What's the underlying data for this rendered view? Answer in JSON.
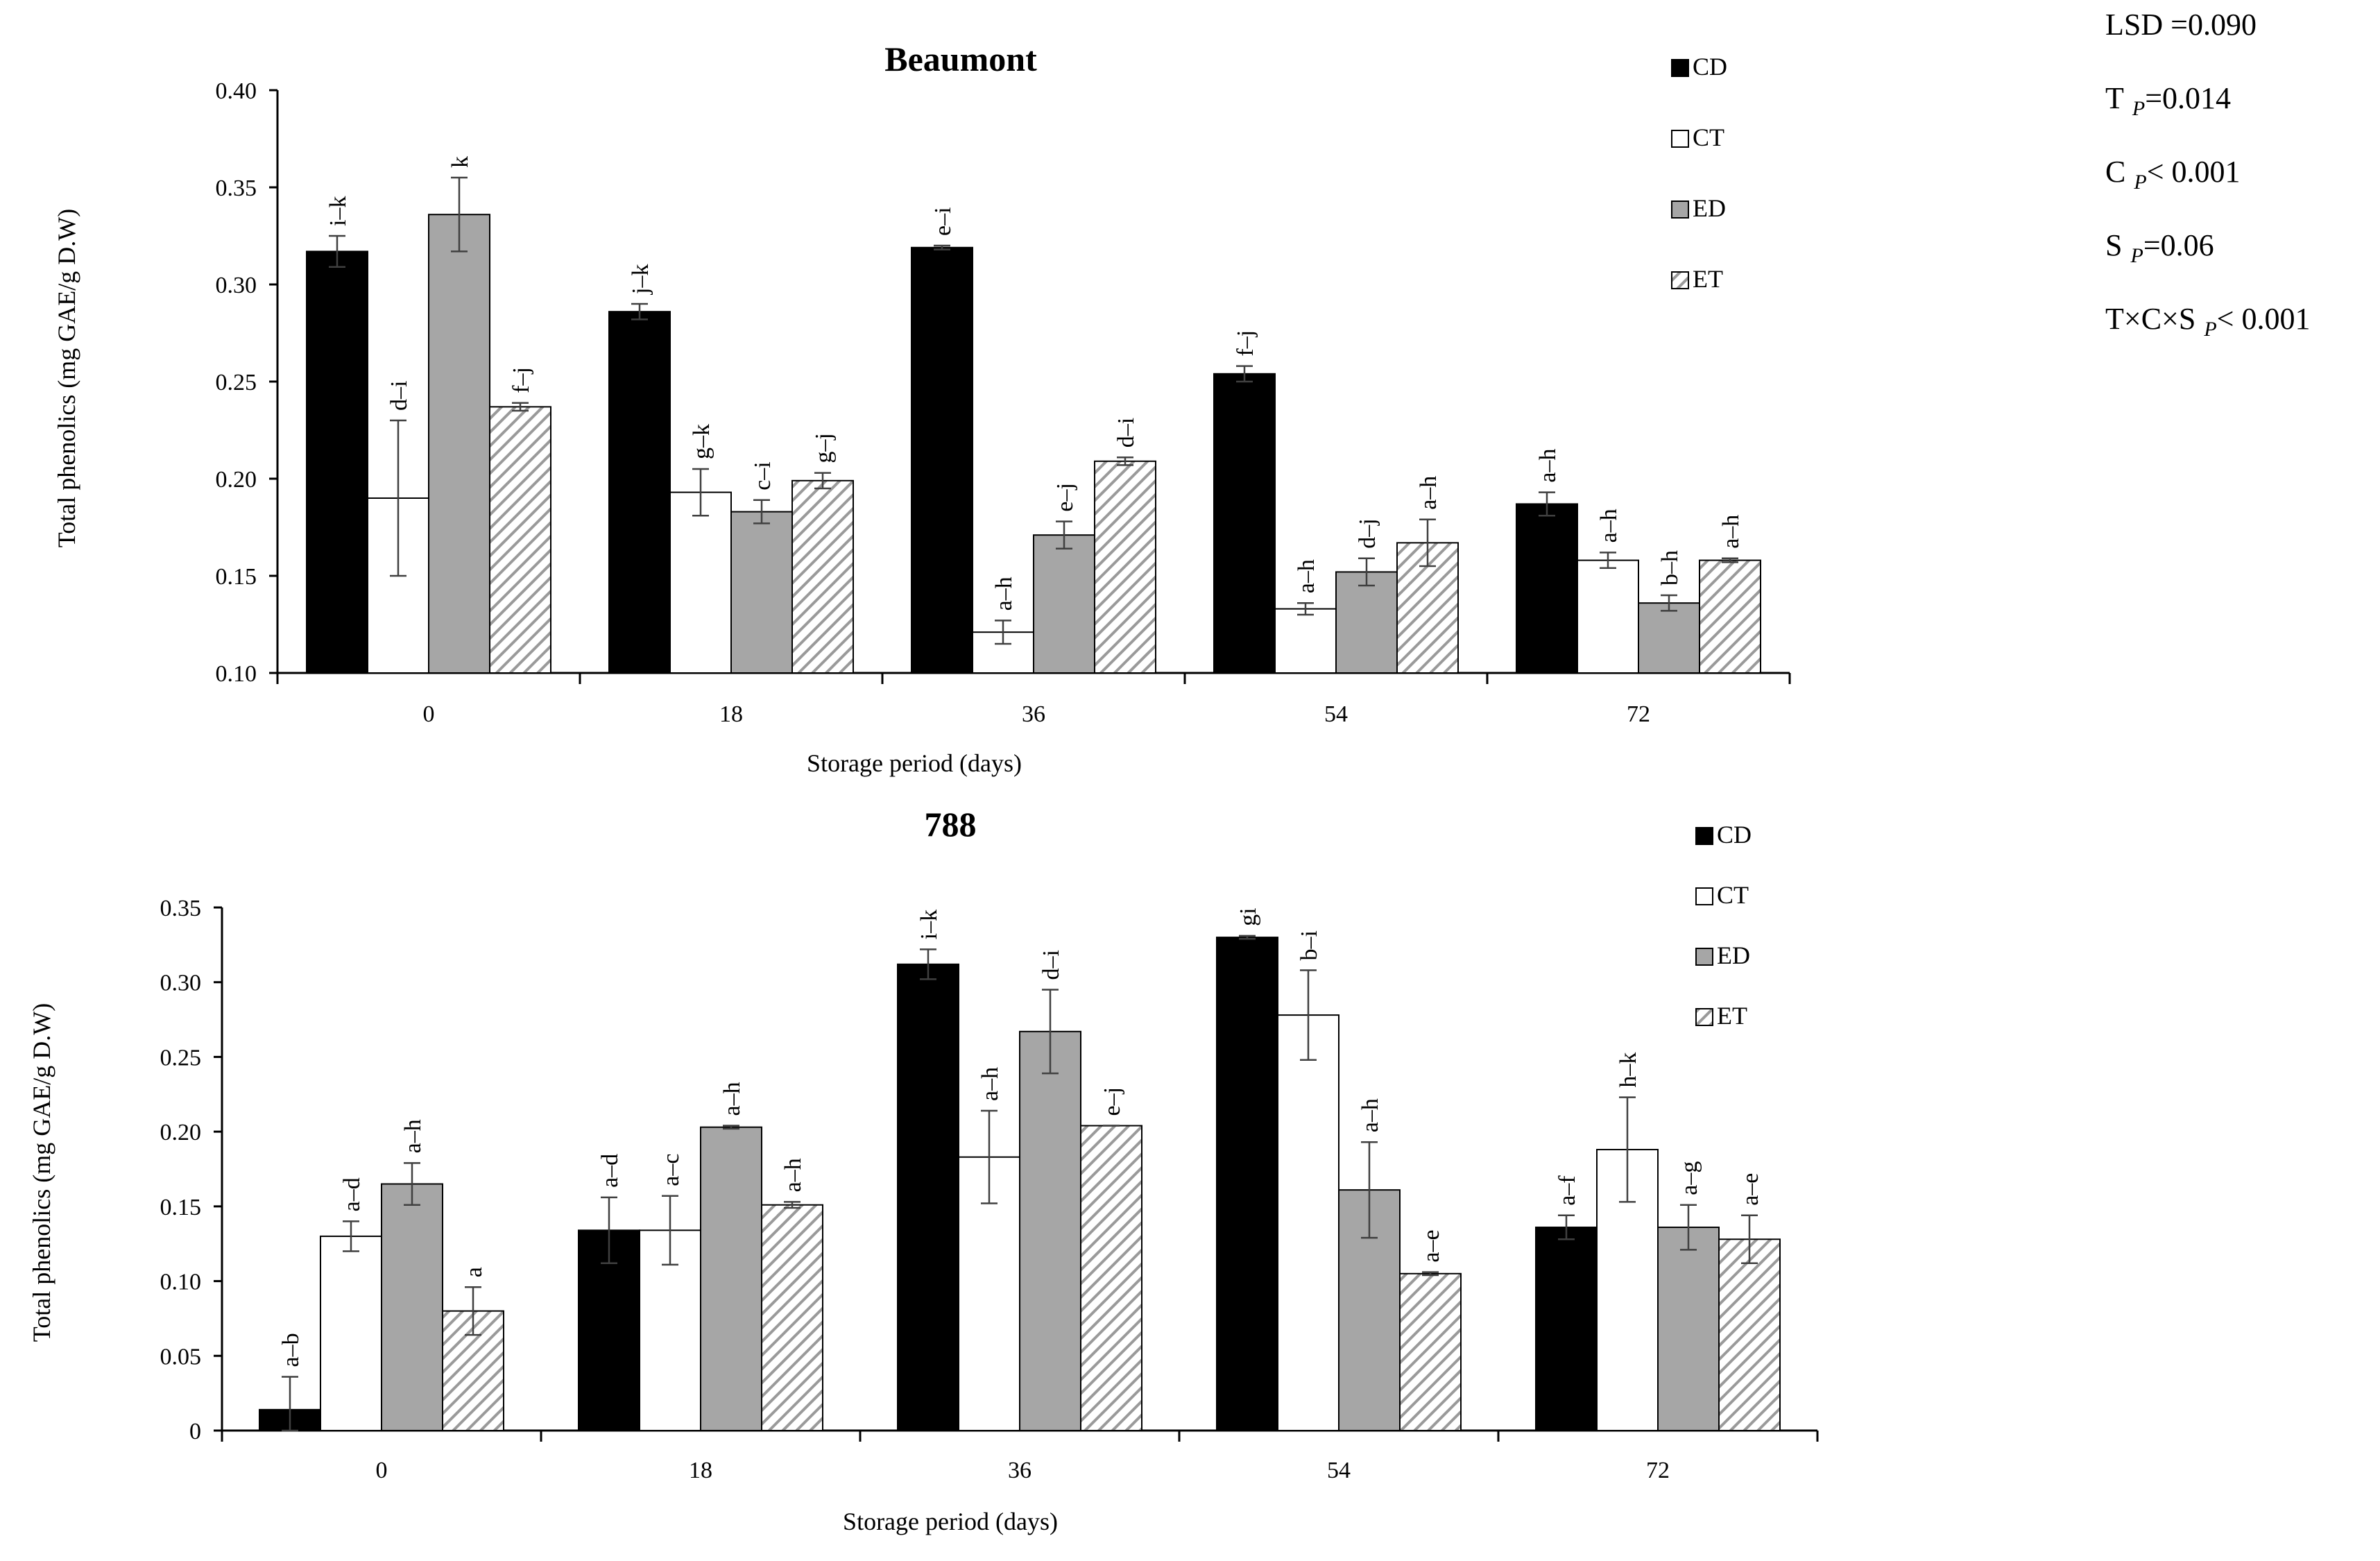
{
  "colors": {
    "CD": "#000000",
    "CT": "#ffffff",
    "ED": "#a6a6a6",
    "ET": "hatch",
    "hatch_stroke": "#999999",
    "axis": "#000000",
    "error_bar": "#404040"
  },
  "stats": [
    {
      "label": "LSD =0.090",
      "sub": "",
      "rest": ""
    },
    {
      "label": "T",
      "sub": "P",
      "rest": "=0.014"
    },
    {
      "label": "C",
      "sub": "P",
      "rest": "< 0.001"
    },
    {
      "label": "S",
      "sub": "P",
      "rest": "=0.06"
    },
    {
      "label": "T×C×S",
      "sub": "P",
      "rest": "< 0.001"
    }
  ],
  "chart_data": [
    {
      "type": "bar",
      "title": "Beaumont",
      "xlabel": "Storage period (days)",
      "ylabel": "Total phenolics (mg GAE/g D.W)",
      "ylim": [
        0.1,
        0.4
      ],
      "yticks": [
        "0.10",
        "0.15",
        "0.20",
        "0.25",
        "0.30",
        "0.35",
        "0.40"
      ],
      "categories": [
        "0",
        "18",
        "36",
        "54",
        "72"
      ],
      "legend": [
        "CD",
        "CT",
        "ED",
        "ET"
      ],
      "series": [
        {
          "name": "CD",
          "values": [
            0.317,
            0.286,
            0.319,
            0.254,
            0.187
          ],
          "errors": [
            0.008,
            0.004,
            0.001,
            0.004,
            0.006
          ],
          "letters": [
            "i–k",
            "j–k",
            "e–i",
            "f–j",
            "a–h"
          ]
        },
        {
          "name": "CT",
          "values": [
            0.19,
            0.193,
            0.121,
            0.133,
            0.158
          ],
          "errors": [
            0.04,
            0.012,
            0.006,
            0.003,
            0.004
          ],
          "letters": [
            "d–i",
            "g–k",
            "a–h",
            "a–h",
            "a–h"
          ]
        },
        {
          "name": "ED",
          "values": [
            0.336,
            0.183,
            0.171,
            0.152,
            0.136
          ],
          "errors": [
            0.019,
            0.006,
            0.007,
            0.007,
            0.004
          ],
          "letters": [
            "k",
            "c–i",
            "e–j",
            "d–j",
            "b–h"
          ]
        },
        {
          "name": "ET",
          "values": [
            0.237,
            0.199,
            0.209,
            0.167,
            0.158
          ],
          "errors": [
            0.002,
            0.004,
            0.002,
            0.012,
            0.001
          ],
          "letters": [
            "f–j",
            "g–j",
            "d–i",
            "a–h",
            "a–h"
          ]
        }
      ]
    },
    {
      "type": "bar",
      "title": "788",
      "xlabel": "Storage period (days)",
      "ylabel": "Total phenolics (mg GAE/g D.W)",
      "ylim": [
        0,
        0.35
      ],
      "yticks": [
        "0",
        "0.05",
        "0.10",
        "0.15",
        "0.20",
        "0.25",
        "0.30",
        "0.35"
      ],
      "categories": [
        "0",
        "18",
        "36",
        "54",
        "72"
      ],
      "legend": [
        "CD",
        "CT",
        "ED",
        "ET"
      ],
      "series": [
        {
          "name": "CD",
          "values": [
            0.014,
            0.134,
            0.312,
            0.33,
            0.136
          ],
          "errors": [
            0.022,
            0.022,
            0.01,
            0.001,
            0.008
          ],
          "letters": [
            "a–b",
            "a–d",
            "i–k",
            "gi",
            "a–f"
          ]
        },
        {
          "name": "CT",
          "values": [
            0.13,
            0.134,
            0.183,
            0.278,
            0.188
          ],
          "errors": [
            0.01,
            0.023,
            0.031,
            0.03,
            0.035
          ],
          "letters": [
            "a–d",
            "a–c",
            "a–h",
            "b–i",
            "h–k"
          ]
        },
        {
          "name": "ED",
          "values": [
            0.165,
            0.203,
            0.267,
            0.161,
            0.136
          ],
          "errors": [
            0.014,
            0.001,
            0.028,
            0.032,
            0.015
          ],
          "letters": [
            "a–h",
            "a–h",
            "d–i",
            "a–h",
            "a–g"
          ]
        },
        {
          "name": "ET",
          "values": [
            0.08,
            0.151,
            0.204,
            0.105,
            0.128
          ],
          "errors": [
            0.016,
            0.002,
            0.0,
            0.001,
            0.016
          ],
          "letters": [
            "a",
            "a–h",
            "e–j",
            "a–e",
            "a–e"
          ]
        }
      ]
    }
  ]
}
